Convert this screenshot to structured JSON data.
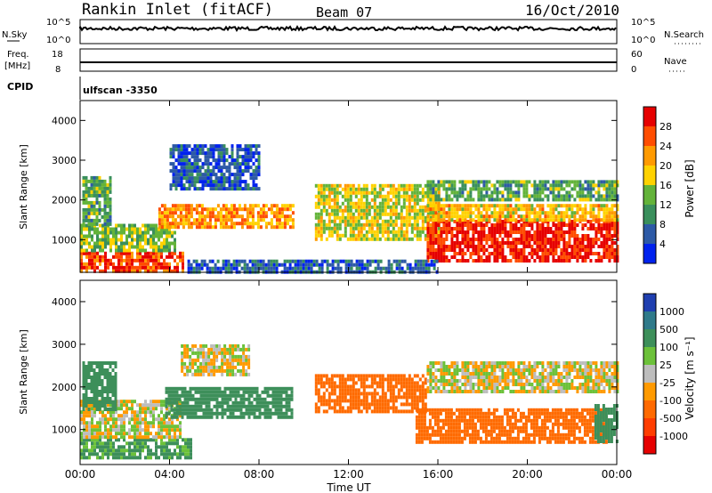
{
  "header": {
    "station": "Rankin Inlet (fitACF)",
    "beam": "Beam 07",
    "date": "16/Oct/2010"
  },
  "noise_panel": {
    "left_label": "N.Sky",
    "right_label": "N.Search",
    "left_ticks": [
      "10^5",
      "10^0"
    ],
    "right_ticks": [
      "10^5",
      "10^0"
    ]
  },
  "freq_panel": {
    "left_label_1": "Freq.",
    "left_label_2": "[MHz]",
    "right_label": "Nave",
    "left_ticks": [
      "18",
      "8"
    ],
    "right_ticks": [
      "60",
      "0"
    ]
  },
  "cpid": {
    "label": "CPID",
    "value": "ulfscan -3350"
  },
  "power_colorbar": {
    "label": "Power [dB]",
    "ticks": [
      "28",
      "24",
      "20",
      "16",
      "12",
      "8",
      "4"
    ],
    "colors": [
      "#e60000",
      "#ff4d00",
      "#ff9a00",
      "#ffd200",
      "#63b33a",
      "#3a8f5c",
      "#2d5aa6",
      "#0022ee"
    ]
  },
  "velocity_colorbar": {
    "label": "Velocity [m s⁻¹]",
    "ticks": [
      "1000",
      "500",
      "100",
      "25",
      "-25",
      "-100",
      "-500",
      "-1000"
    ],
    "colors": [
      "#1f3fb0",
      "#2f7a8a",
      "#3d8f5a",
      "#6cc13a",
      "#bdbdbd",
      "#ff9a00",
      "#ff6a00",
      "#ff3d00",
      "#e60000"
    ]
  },
  "chart_data": {
    "type": "heatmap",
    "x_label": "Time UT",
    "x_ticks": [
      "00:00",
      "04:00",
      "08:00",
      "12:00",
      "16:00",
      "20:00",
      "00:00"
    ],
    "x_range_hours": [
      0,
      24
    ],
    "y_label": "Slant Range [km]",
    "y_ticks": [
      "1000",
      "2000",
      "3000",
      "4000"
    ],
    "y_range_km": [
      180,
      4500
    ],
    "panels": [
      "Power",
      "Velocity"
    ],
    "power_regions": [
      {
        "t0": 0.0,
        "t1": 4.6,
        "r0": 250,
        "r1": 700,
        "value_db": 27
      },
      {
        "t0": 0.0,
        "t1": 4.2,
        "r0": 700,
        "r1": 1400,
        "value_db": 14
      },
      {
        "t0": 0.1,
        "t1": 1.4,
        "r0": 1400,
        "r1": 2600,
        "value_db": 12
      },
      {
        "t0": 3.5,
        "t1": 9.5,
        "r0": 1300,
        "r1": 1900,
        "value_db": 22
      },
      {
        "t0": 4.0,
        "t1": 8.0,
        "r0": 2300,
        "r1": 3400,
        "value_db": 6
      },
      {
        "t0": 10.5,
        "t1": 16.0,
        "r0": 1000,
        "r1": 2400,
        "value_db": 17
      },
      {
        "t0": 15.5,
        "t1": 24.0,
        "r0": 500,
        "r1": 1500,
        "value_db": 29
      },
      {
        "t0": 15.5,
        "t1": 24.0,
        "r0": 1500,
        "r1": 1900,
        "value_db": 20
      },
      {
        "t0": 15.5,
        "t1": 24.0,
        "r0": 2000,
        "r1": 2500,
        "value_db": 12
      },
      {
        "t0": 4.8,
        "t1": 16.0,
        "r0": 200,
        "r1": 500,
        "value_db": 6
      }
    ],
    "velocity_regions": [
      {
        "t0": 0.0,
        "t1": 5.0,
        "r0": 350,
        "r1": 800,
        "value_ms": 150
      },
      {
        "t0": 0.0,
        "t1": 4.5,
        "r0": 800,
        "r1": 1700,
        "value_ms": 0
      },
      {
        "t0": 0.1,
        "t1": 1.6,
        "r0": 1500,
        "r1": 2600,
        "value_ms": 200
      },
      {
        "t0": 3.8,
        "t1": 9.5,
        "r0": 1300,
        "r1": 2000,
        "value_ms": 200
      },
      {
        "t0": 4.5,
        "t1": 7.5,
        "r0": 2300,
        "r1": 3000,
        "value_ms": 0
      },
      {
        "t0": 10.5,
        "t1": 15.5,
        "r0": 1400,
        "r1": 2300,
        "value_ms": -250
      },
      {
        "t0": 15.0,
        "t1": 23.5,
        "r0": 700,
        "r1": 1500,
        "value_ms": -300
      },
      {
        "t0": 15.5,
        "t1": 24.0,
        "r0": 1900,
        "r1": 2600,
        "value_ms": 0
      },
      {
        "t0": 23.0,
        "t1": 24.0,
        "r0": 700,
        "r1": 1600,
        "value_ms": 200
      }
    ]
  }
}
